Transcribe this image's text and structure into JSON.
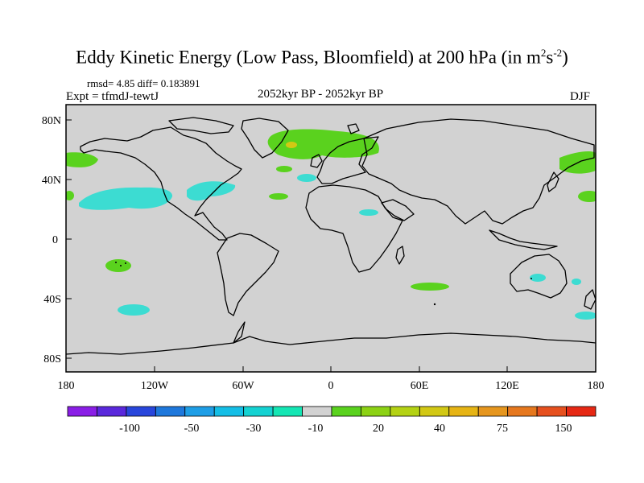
{
  "title": {
    "main": "Eddy Kinetic Energy (Low Pass, Bloomfield) at 200 hPa (in m",
    "sup1": "2",
    "mid": "s",
    "sup2": "-2",
    "end": ")"
  },
  "stats": "rmsd= 4.85  diff= 0.183891",
  "expt": "Expt = tfmdJ-tewtJ",
  "period": "2052kyr BP - 2052kyr BP",
  "season": "DJF",
  "lat_labels": [
    "80N",
    "40N",
    "0",
    "40S",
    "80S"
  ],
  "lon_labels": [
    "180",
    "120W",
    "60W",
    "0",
    "60E",
    "120E",
    "180"
  ],
  "colorbar": {
    "colors": [
      "#8a1ee6",
      "#5a28dc",
      "#2846dc",
      "#1e78dc",
      "#1e9ee6",
      "#14bee6",
      "#14d2d2",
      "#14e6b4",
      "#d2d2d2",
      "#5ad21e",
      "#8cd214",
      "#b4d214",
      "#d2c814",
      "#e6b414",
      "#e6961e",
      "#e6781e",
      "#e6501e",
      "#e62814"
    ],
    "labels": [
      "-100",
      "-50",
      "-30",
      "-10",
      "20",
      "40",
      "75",
      "150"
    ]
  },
  "map_colors": {
    "ocean": "#d2d2d2",
    "positive": "#5ad21e",
    "negative": "#3cdcd2",
    "strong_positive": "#d2c814"
  }
}
